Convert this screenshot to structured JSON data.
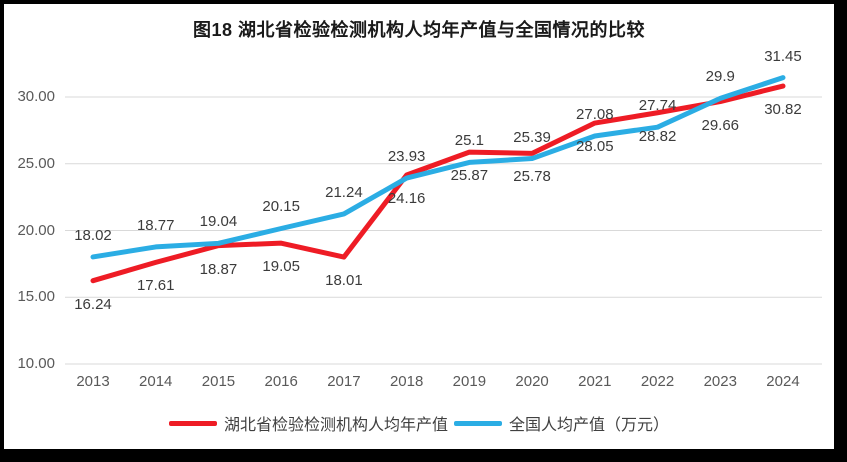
{
  "chart_data": {
    "type": "line",
    "title": "图18  湖北省检验检测机构人均年产值与全国情况的比较",
    "categories": [
      "2013",
      "2014",
      "2015",
      "2016",
      "2017",
      "2018",
      "2019",
      "2020",
      "2021",
      "2022",
      "2023",
      "2024"
    ],
    "series": [
      {
        "name": "湖北省检验检测机构人均年产值",
        "color": "#EE1C25",
        "label_position": "below",
        "values": [
          16.24,
          17.61,
          18.87,
          19.05,
          18.01,
          24.16,
          25.87,
          25.78,
          28.05,
          28.82,
          29.66,
          30.82
        ],
        "labels": [
          "16.24",
          "17.61",
          "18.87",
          "19.05",
          "18.01",
          "24.16",
          "25.87",
          "25.78",
          "28.05",
          "28.82",
          "29.66",
          "30.82"
        ]
      },
      {
        "name": "全国人均产值（万元）",
        "color": "#2BADE4",
        "label_position": "above",
        "values": [
          18.02,
          18.77,
          19.04,
          20.15,
          21.24,
          23.93,
          25.1,
          25.39,
          27.08,
          27.74,
          29.9,
          31.45
        ],
        "labels": [
          "18.02",
          "18.77",
          "19.04",
          "20.15",
          "21.24",
          "23.93",
          "25.1",
          "25.39",
          "27.08",
          "27.74",
          "29.9",
          "31.45"
        ]
      }
    ],
    "y_axis": {
      "ticks": [
        "30.00",
        "25.00",
        "20.00",
        "15.00",
        "10.00"
      ],
      "min": 10,
      "max": 32.5
    },
    "grid": true,
    "legend_position": "bottom"
  },
  "colors": {
    "grid": "#D9D9D9",
    "axis_text": "#595959",
    "data_label_text": "#3B3B3B",
    "title_text": "#1A1A1A",
    "frame_border": "#000000"
  }
}
